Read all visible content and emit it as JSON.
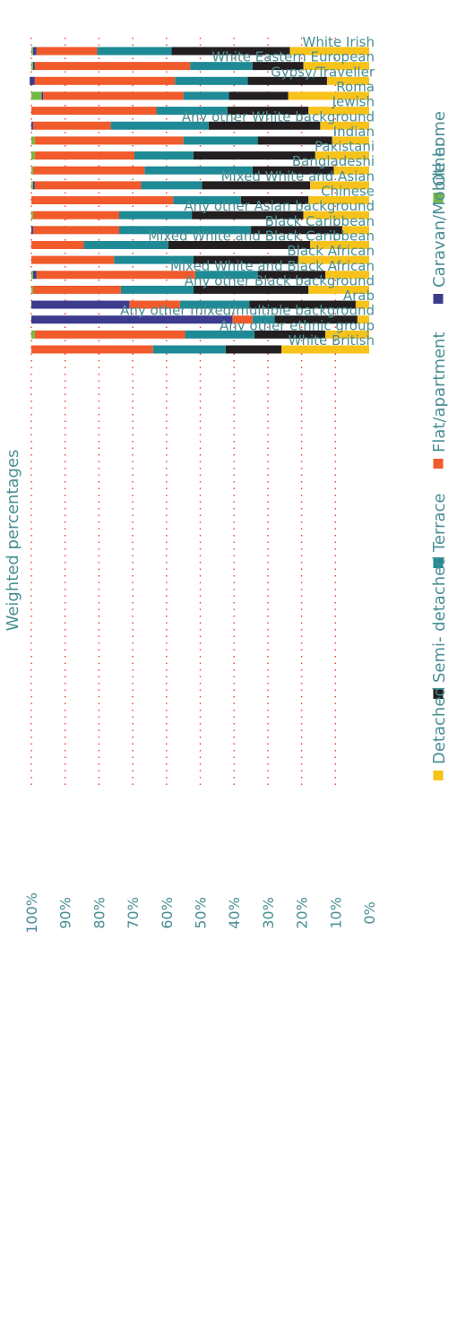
{
  "chart_data": {
    "type": "bar",
    "orientation": "stacked-100",
    "ylabel": "Weighted percentages",
    "ylim": [
      0,
      100
    ],
    "yticks": [
      "0%",
      "10%",
      "20%",
      "30%",
      "40%",
      "50%",
      "60%",
      "70%",
      "80%",
      "90%",
      "100%"
    ],
    "grid": "on",
    "legend_position": "bottom",
    "categories": [
      "White Irish",
      "White Eastern European",
      "Gypsy/Traveller",
      "Roma",
      "Jewish",
      "Any other White background",
      "Indian",
      "Pakistani",
      "Bangladeshi",
      "Mixed White and Asian",
      "Chinese",
      "Any other Asian background",
      "Black Caribbean",
      "Mixed White and Black Caribbean",
      "Black African",
      "Mixed White and Black African",
      "Any other Black background",
      "Arab",
      "Any other mixed/multiple background",
      "Any other ethnic group",
      "White British"
    ],
    "series": [
      {
        "name": "Detached",
        "color": "#f7c21a",
        "values": [
          23.5,
          19.5,
          12.5,
          24,
          18,
          14.5,
          11,
          16,
          10.5,
          17.5,
          18,
          19.5,
          8,
          17.5,
          21,
          13,
          18,
          4,
          3.5,
          13,
          26
        ]
      },
      {
        "name": "Semi- detached",
        "color": "#231f20",
        "values": [
          35,
          15,
          23.5,
          17.5,
          24,
          33,
          22,
          36,
          24,
          32,
          20,
          33,
          27,
          42,
          31,
          20,
          34,
          31.5,
          24.5,
          21,
          16.5
        ]
      },
      {
        "name": "Terrace",
        "color": "#1e8a95",
        "values": [
          22,
          18.5,
          21.5,
          13.5,
          21,
          29,
          22,
          17.5,
          32,
          18,
          20,
          21.5,
          39,
          25,
          23.5,
          18.5,
          21.5,
          20.5,
          6.5,
          20.5,
          21.5
        ]
      },
      {
        "name": "Flat/apartment",
        "color": "#f15a2b",
        "values": [
          18,
          46,
          41.5,
          41.5,
          37,
          23,
          44,
          29.5,
          33,
          31.5,
          42,
          25.5,
          25.5,
          15.5,
          24.5,
          47,
          26,
          15,
          6,
          44.5,
          36
        ]
      },
      {
        "name": "Caravan/Mobile home",
        "color": "#3d3b8e",
        "values": [
          1,
          0.5,
          1.5,
          0.5,
          0,
          0.5,
          0,
          0,
          0,
          0.5,
          0,
          0,
          0.5,
          0,
          0,
          1,
          0,
          29,
          59.5,
          0,
          0
        ]
      },
      {
        "name": "Other",
        "color": "#74b843",
        "values": [
          0.5,
          0.5,
          0,
          3,
          0,
          0,
          1,
          1,
          0.5,
          0.5,
          0,
          0.5,
          0,
          0,
          0,
          0.5,
          0.5,
          0,
          0,
          1,
          0
        ]
      }
    ]
  }
}
